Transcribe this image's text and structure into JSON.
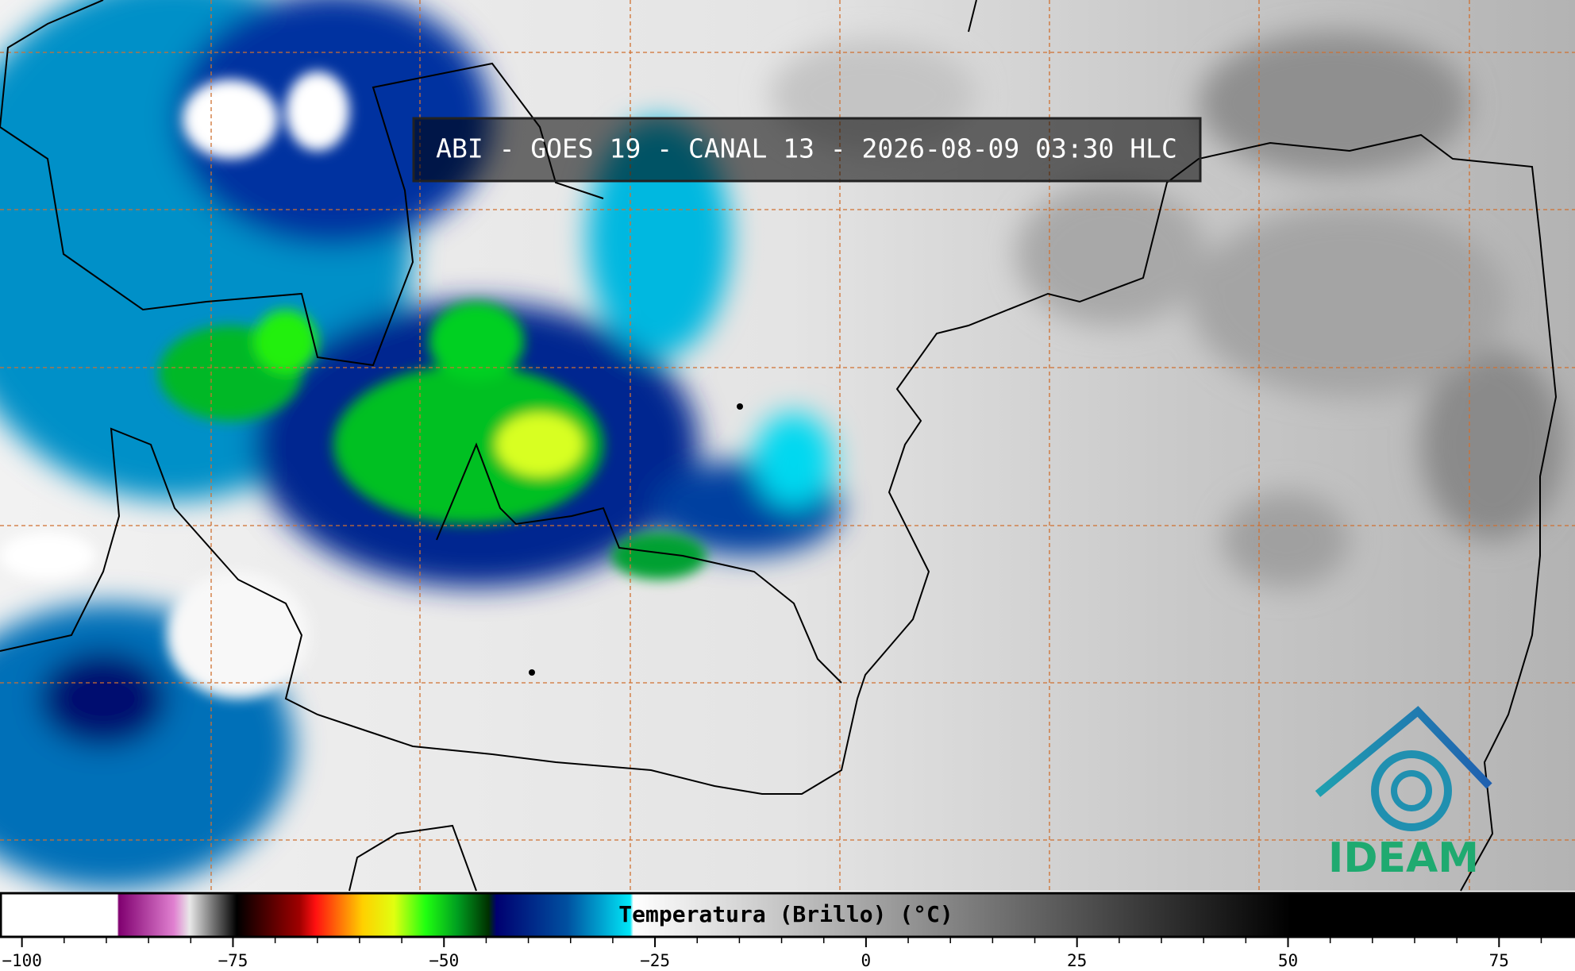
{
  "title": "ABI - GOES 19 - CANAL 13 - 2026-08-09 03:30 HLC",
  "colorbar": {
    "label": "Temperatura (Brillo) (°C)",
    "xlim": [
      -102.6,
      84
    ],
    "xticks": [
      {
        "value": -100,
        "label": "−100"
      },
      {
        "value": -75,
        "label": "−75"
      },
      {
        "value": -50,
        "label": "−50"
      },
      {
        "value": -25,
        "label": "−25"
      },
      0,
      25,
      50,
      75
    ],
    "minor_ticks": [
      -95,
      -90,
      -85,
      -80,
      -70,
      -65,
      -60,
      -55,
      -45,
      -40,
      -35,
      -30,
      -20,
      -15,
      -10,
      -5,
      5,
      10,
      15,
      20,
      30,
      35,
      40,
      45,
      55,
      60,
      65,
      70,
      80
    ]
  },
  "logo": {
    "text": "IDEAM"
  }
}
